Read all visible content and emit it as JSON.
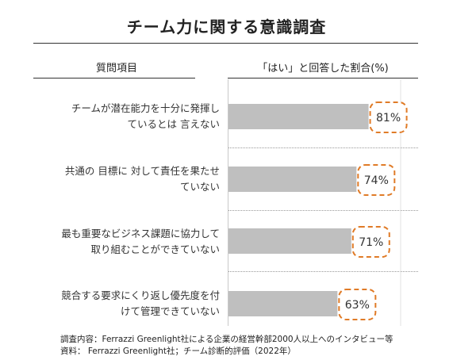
{
  "title": "チーム力に関する意識調査",
  "columns": {
    "left": "質問項目",
    "right": "「はい」と回答した割合(%)"
  },
  "rows": [
    {
      "line1": "チームが潜在能力を十分に発揮し",
      "line2": "ているとは 言えない"
    },
    {
      "line1": "共通の 目標に 対して責任を果たせ",
      "line2": "ていない"
    },
    {
      "line1": "最も重要なビジネス課題に協力して",
      "line2": "取り組むことができていない"
    },
    {
      "line1": "競合する要求にくり返し優先度を付",
      "line2": "けて管理できていない"
    }
  ],
  "footnotes": {
    "line1": "調査内容：Ferrazzi Greenlight社による企業の経営幹部2000人以上へのインタビュー等",
    "line2": "資料： Ferrazzi Greenlight社；チーム診断的評価（2022年）"
  },
  "colors": {
    "bar": "#bfbfbf",
    "highlight": "#e07b27"
  },
  "chart_data": {
    "type": "bar",
    "orientation": "horizontal",
    "categories": [
      "チームが潜在能力を十分に発揮しているとは 言えない",
      "共通の 目標に 対して責任を果たせていない",
      "最も重要なビジネス課題に協力して取り組むことができていない",
      "競合する要求にくり返し優先度を付けて管理できていない"
    ],
    "values": [
      81,
      74,
      71,
      63
    ],
    "value_labels": [
      "81%",
      "74%",
      "71%",
      "63%"
    ],
    "xlim": [
      0,
      100
    ],
    "title": "チーム力に関する意識調査",
    "xlabel": "「はい」と回答した割合(%)",
    "ylabel": "質問項目",
    "grid": true
  }
}
